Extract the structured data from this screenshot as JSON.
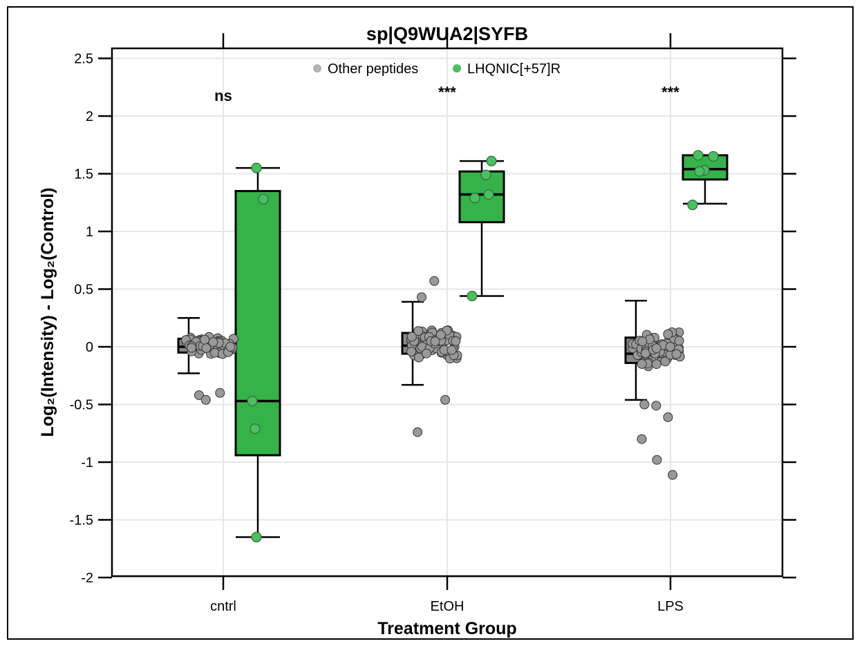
{
  "chart_data": {
    "type": "box",
    "title": "sp|Q9WUA2|SYFB",
    "xlabel": "Treatment Group",
    "ylabel": "Log₂(Intensity) - Log₂(Control)",
    "ylim": [
      -2,
      2.6
    ],
    "yticks": [
      -2,
      -1.5,
      -1,
      -0.5,
      0,
      0.5,
      1,
      1.5,
      2,
      2.5
    ],
    "ytick_labels": [
      "-2",
      "-1.5",
      "-1",
      "-0.5",
      "0",
      "0.5",
      "1",
      "1.5",
      "2",
      "2.5"
    ],
    "categories": [
      "cntrl",
      "EtOH",
      "LPS"
    ],
    "grid": true,
    "legend_position": "top-center",
    "legend": [
      {
        "label": "Other peptides",
        "color": "#b3b3b3"
      },
      {
        "label": "LHQNIC[+57]R",
        "color": "#4cbe63"
      }
    ],
    "significance": [
      "ns",
      "***",
      "***"
    ],
    "series": [
      {
        "name": "Other peptides",
        "box_color": "#888888",
        "point_color": "#999999",
        "boxes": [
          {
            "category": "cntrl",
            "whisker_low": -0.23,
            "q1": -0.05,
            "median": 0.0,
            "q3": 0.07,
            "whisker_high": 0.25
          },
          {
            "category": "EtOH",
            "whisker_low": -0.33,
            "q1": -0.06,
            "median": 0.01,
            "q3": 0.12,
            "whisker_high": 0.39
          },
          {
            "category": "LPS",
            "whisker_low": -0.46,
            "q1": -0.14,
            "median": -0.06,
            "q3": 0.08,
            "whisker_high": 0.4
          }
        ],
        "outliers": [
          {
            "category": "cntrl",
            "values": [
              -0.42,
              -0.46,
              -0.4
            ]
          },
          {
            "category": "EtOH",
            "values": [
              0.43,
              0.57,
              -0.46,
              -0.74
            ]
          },
          {
            "category": "LPS",
            "values": [
              -0.5,
              -0.51,
              -0.61,
              -0.8,
              -0.98,
              -1.11
            ]
          }
        ]
      },
      {
        "name": "LHQNIC[+57]R",
        "box_color": "#35b34a",
        "point_color": "#4cbe63",
        "boxes": [
          {
            "category": "cntrl",
            "whisker_low": -1.65,
            "q1": -0.94,
            "median": -0.47,
            "q3": 1.35,
            "whisker_high": 1.55
          },
          {
            "category": "EtOH",
            "whisker_low": 0.44,
            "q1": 1.08,
            "median": 1.32,
            "q3": 1.52,
            "whisker_high": 1.61
          },
          {
            "category": "LPS",
            "whisker_low": 1.24,
            "q1": 1.45,
            "median": 1.54,
            "q3": 1.66,
            "whisker_high": 1.66
          }
        ],
        "points": [
          {
            "category": "cntrl",
            "values": [
              1.55,
              1.28,
              -0.47,
              -0.71,
              -1.65
            ]
          },
          {
            "category": "EtOH",
            "values": [
              1.61,
              1.49,
              1.32,
              1.29,
              0.44
            ]
          },
          {
            "category": "LPS",
            "values": [
              1.66,
              1.65,
              1.53,
              1.52,
              1.23
            ]
          }
        ]
      }
    ]
  }
}
